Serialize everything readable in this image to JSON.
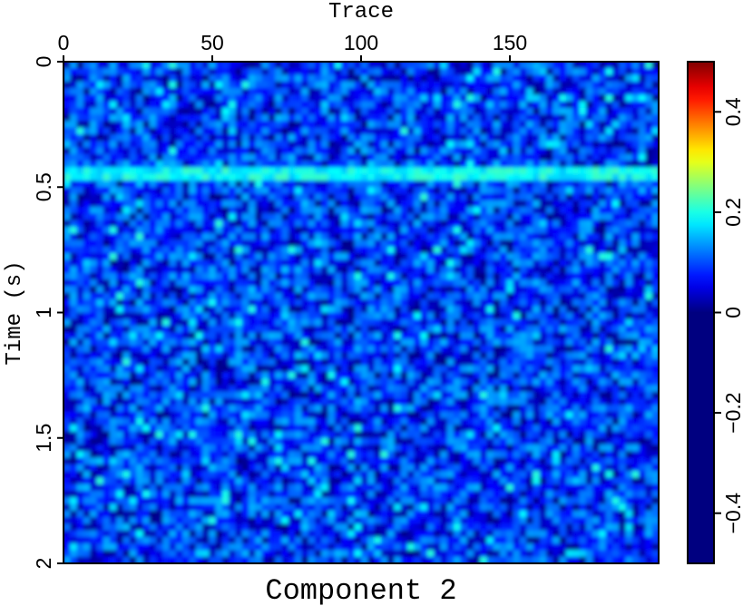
{
  "chart_data": {
    "type": "heatmap",
    "title": "Component 2",
    "xlabel": "Trace",
    "ylabel": "Time (s)",
    "xlim": [
      0,
      199
    ],
    "ylim": [
      0,
      2
    ],
    "y_inverted": true,
    "x_axis_position": "top",
    "x_ticks": [
      0,
      50,
      100,
      150
    ],
    "x_tick_labels": [
      "0",
      "50",
      "100",
      "150"
    ],
    "y_ticks": [
      0,
      0.5,
      1,
      1.5,
      2
    ],
    "y_tick_labels": [
      "0",
      "0.5",
      "1",
      "1.5",
      "2"
    ],
    "colorbar": {
      "colormap": "jet (positive half), negatives clipped to dark blue",
      "range": [
        -0.5,
        0.5
      ],
      "ticks": [
        0.4,
        0.2,
        0,
        -0.2,
        -0.4
      ],
      "tick_labels": [
        "0.4",
        "0.2",
        "0",
        "−0.2",
        "−0.4"
      ],
      "placement": "right"
    },
    "horizontal_event_time_s": 0.45,
    "grid": false
  }
}
